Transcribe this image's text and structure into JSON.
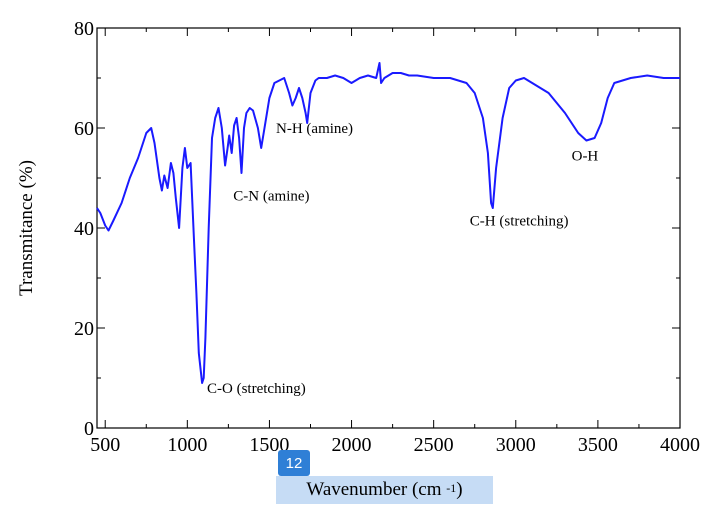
{
  "chart_data": {
    "type": "line",
    "title": "",
    "xlabel": "Wavenumber (cm",
    "xlabel_superscript": "-1",
    "xlabel_suffix": ")",
    "ylabel": "Transmitance (%)",
    "xlim": [
      450,
      4000
    ],
    "ylim": [
      0,
      80
    ],
    "x_ticks": [
      "500",
      "1000",
      "1500",
      "2000",
      "2500",
      "3000",
      "3500",
      "4000"
    ],
    "y_ticks": [
      "0",
      "20",
      "40",
      "60",
      "80"
    ],
    "grid": false,
    "series": [
      {
        "color": "#1a1aff",
        "points": [
          [
            450,
            44
          ],
          [
            470,
            43
          ],
          [
            500,
            40.5
          ],
          [
            520,
            39.5
          ],
          [
            550,
            41.5
          ],
          [
            600,
            45
          ],
          [
            650,
            50
          ],
          [
            700,
            54
          ],
          [
            750,
            59
          ],
          [
            780,
            60
          ],
          [
            800,
            57
          ],
          [
            830,
            50
          ],
          [
            845,
            47.5
          ],
          [
            860,
            50.5
          ],
          [
            880,
            48
          ],
          [
            900,
            53
          ],
          [
            915,
            51
          ],
          [
            930,
            46
          ],
          [
            950,
            40
          ],
          [
            970,
            52
          ],
          [
            985,
            56
          ],
          [
            1000,
            52
          ],
          [
            1020,
            53
          ],
          [
            1040,
            38
          ],
          [
            1055,
            27
          ],
          [
            1070,
            15
          ],
          [
            1090,
            9
          ],
          [
            1100,
            10
          ],
          [
            1110,
            18
          ],
          [
            1130,
            40
          ],
          [
            1150,
            58
          ],
          [
            1170,
            62
          ],
          [
            1190,
            64
          ],
          [
            1210,
            60
          ],
          [
            1230,
            52.5
          ],
          [
            1245,
            56
          ],
          [
            1255,
            58.5
          ],
          [
            1270,
            55
          ],
          [
            1285,
            60.5
          ],
          [
            1300,
            62
          ],
          [
            1315,
            58
          ],
          [
            1330,
            51
          ],
          [
            1345,
            60
          ],
          [
            1360,
            63
          ],
          [
            1380,
            64
          ],
          [
            1400,
            63.5
          ],
          [
            1430,
            60
          ],
          [
            1450,
            56
          ],
          [
            1470,
            60
          ],
          [
            1500,
            66
          ],
          [
            1530,
            69
          ],
          [
            1560,
            69.5
          ],
          [
            1590,
            70
          ],
          [
            1620,
            67
          ],
          [
            1640,
            64.5
          ],
          [
            1660,
            66
          ],
          [
            1680,
            68
          ],
          [
            1700,
            66
          ],
          [
            1720,
            63
          ],
          [
            1730,
            61
          ],
          [
            1750,
            67
          ],
          [
            1780,
            69.5
          ],
          [
            1800,
            70
          ],
          [
            1850,
            70
          ],
          [
            1900,
            70.5
          ],
          [
            1950,
            70
          ],
          [
            2000,
            69
          ],
          [
            2050,
            70
          ],
          [
            2100,
            70.5
          ],
          [
            2150,
            70
          ],
          [
            2170,
            73
          ],
          [
            2180,
            69
          ],
          [
            2200,
            70
          ],
          [
            2250,
            71
          ],
          [
            2300,
            71
          ],
          [
            2350,
            70.5
          ],
          [
            2400,
            70.5
          ],
          [
            2500,
            70
          ],
          [
            2600,
            70
          ],
          [
            2700,
            69
          ],
          [
            2750,
            67
          ],
          [
            2800,
            62
          ],
          [
            2830,
            55
          ],
          [
            2850,
            45
          ],
          [
            2860,
            44
          ],
          [
            2880,
            52
          ],
          [
            2920,
            62
          ],
          [
            2960,
            68
          ],
          [
            3000,
            69.5
          ],
          [
            3050,
            70
          ],
          [
            3100,
            69
          ],
          [
            3200,
            67
          ],
          [
            3300,
            63
          ],
          [
            3380,
            59
          ],
          [
            3430,
            57.5
          ],
          [
            3480,
            58
          ],
          [
            3520,
            61
          ],
          [
            3560,
            66
          ],
          [
            3600,
            69
          ],
          [
            3700,
            70
          ],
          [
            3800,
            70.5
          ],
          [
            3900,
            70
          ],
          [
            4000,
            70
          ]
        ]
      }
    ],
    "annotations": [
      {
        "text": "C-O (stretching)",
        "x": 1120,
        "y": 7
      },
      {
        "text": "C-N (amine)",
        "x": 1280,
        "y": 45.5
      },
      {
        "text": "N-H (amine)",
        "x": 1540,
        "y": 59
      },
      {
        "text": "C-H (stretching)",
        "x": 2720,
        "y": 40.5
      },
      {
        "text": "O-H",
        "x": 3340,
        "y": 53.5
      }
    ]
  },
  "overlay": {
    "badge_label": "12"
  }
}
